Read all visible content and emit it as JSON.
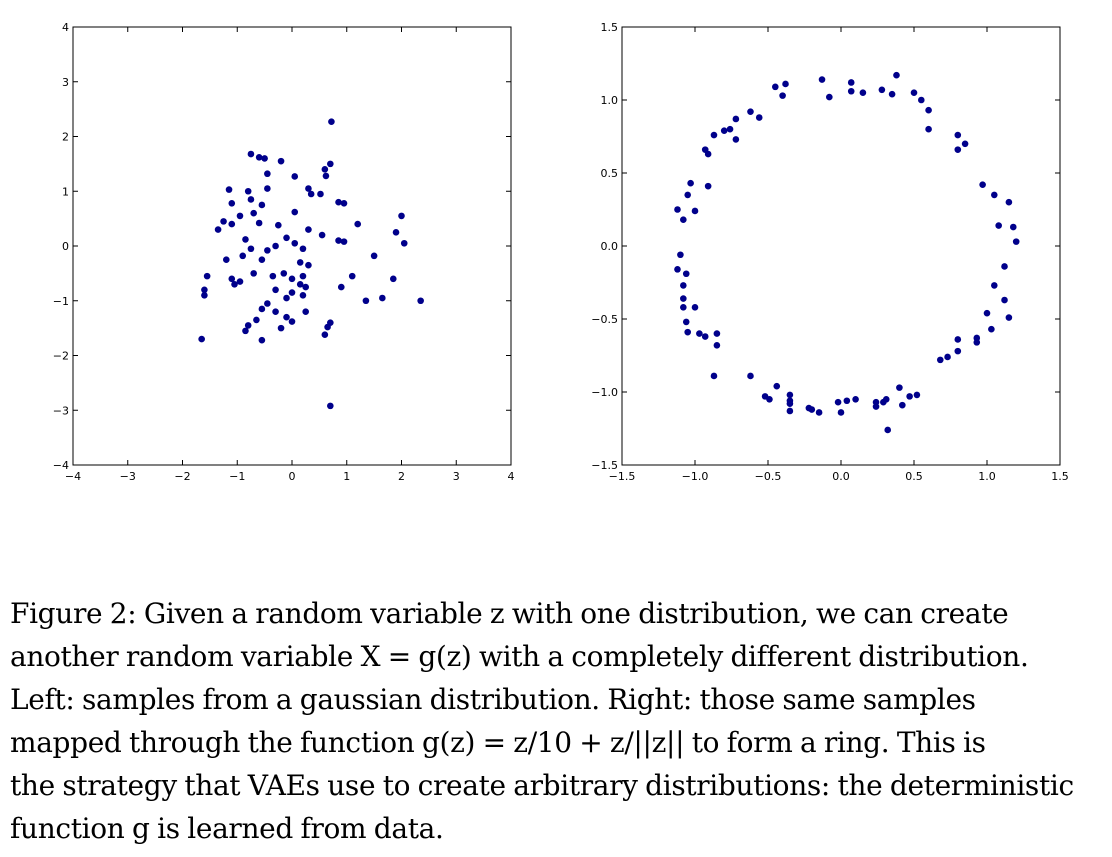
{
  "chart_data": [
    {
      "type": "scatter",
      "xlim": [
        -4,
        4
      ],
      "ylim": [
        -4,
        4
      ],
      "x_ticks": [
        "−4",
        "−3",
        "−2",
        "−1",
        "0",
        "1",
        "2",
        "3",
        "4"
      ],
      "y_ticks": [
        "−4",
        "−3",
        "−2",
        "−1",
        "0",
        "1",
        "2",
        "3",
        "4"
      ],
      "grid": false,
      "marker_color": "#00008b",
      "points": [
        [
          0.72,
          2.27
        ],
        [
          -0.75,
          1.68
        ],
        [
          -0.6,
          1.62
        ],
        [
          -0.5,
          1.6
        ],
        [
          -0.2,
          1.55
        ],
        [
          0.7,
          1.5
        ],
        [
          0.6,
          1.4
        ],
        [
          0.62,
          1.28
        ],
        [
          0.05,
          1.27
        ],
        [
          -0.45,
          1.32
        ],
        [
          0.3,
          1.05
        ],
        [
          0.52,
          0.95
        ],
        [
          -0.45,
          1.05
        ],
        [
          -0.8,
          1.0
        ],
        [
          -1.15,
          1.03
        ],
        [
          -1.1,
          0.78
        ],
        [
          -0.75,
          0.85
        ],
        [
          -0.55,
          0.75
        ],
        [
          0.35,
          0.95
        ],
        [
          0.85,
          0.8
        ],
        [
          0.95,
          0.78
        ],
        [
          0.05,
          0.62
        ],
        [
          -0.7,
          0.6
        ],
        [
          -0.95,
          0.55
        ],
        [
          -1.25,
          0.45
        ],
        [
          -1.1,
          0.4
        ],
        [
          -1.35,
          0.3
        ],
        [
          -0.6,
          0.42
        ],
        [
          -0.25,
          0.38
        ],
        [
          1.2,
          0.4
        ],
        [
          0.3,
          0.3
        ],
        [
          0.55,
          0.2
        ],
        [
          2.0,
          0.55
        ],
        [
          1.9,
          0.25
        ],
        [
          2.05,
          0.05
        ],
        [
          -0.1,
          0.15
        ],
        [
          0.05,
          0.05
        ],
        [
          -0.85,
          0.12
        ],
        [
          -0.3,
          0.0
        ],
        [
          -0.45,
          -0.08
        ],
        [
          -0.75,
          -0.05
        ],
        [
          0.2,
          -0.05
        ],
        [
          0.95,
          0.08
        ],
        [
          0.85,
          0.1
        ],
        [
          1.5,
          -0.18
        ],
        [
          -1.2,
          -0.25
        ],
        [
          -0.9,
          -0.18
        ],
        [
          -0.55,
          -0.25
        ],
        [
          0.15,
          -0.3
        ],
        [
          0.3,
          -0.35
        ],
        [
          -1.55,
          -0.55
        ],
        [
          -1.1,
          -0.6
        ],
        [
          -0.95,
          -0.65
        ],
        [
          -1.05,
          -0.7
        ],
        [
          -0.7,
          -0.5
        ],
        [
          -0.35,
          -0.55
        ],
        [
          -0.15,
          -0.5
        ],
        [
          0.0,
          -0.6
        ],
        [
          0.2,
          -0.55
        ],
        [
          0.15,
          -0.7
        ],
        [
          0.25,
          -0.75
        ],
        [
          1.1,
          -0.55
        ],
        [
          0.9,
          -0.75
        ],
        [
          1.85,
          -0.6
        ],
        [
          -1.6,
          -0.8
        ],
        [
          -1.6,
          -0.9
        ],
        [
          -0.3,
          -0.8
        ],
        [
          0.0,
          -0.85
        ],
        [
          0.2,
          -0.9
        ],
        [
          -0.1,
          -0.95
        ],
        [
          1.35,
          -1.0
        ],
        [
          1.65,
          -0.95
        ],
        [
          2.35,
          -1.0
        ],
        [
          -0.45,
          -1.05
        ],
        [
          -0.55,
          -1.15
        ],
        [
          -0.3,
          -1.2
        ],
        [
          0.25,
          -1.2
        ],
        [
          -0.1,
          -1.3
        ],
        [
          -0.65,
          -1.35
        ],
        [
          0.7,
          -1.4
        ],
        [
          0.0,
          -1.38
        ],
        [
          -0.8,
          -1.45
        ],
        [
          -0.2,
          -1.5
        ],
        [
          0.65,
          -1.48
        ],
        [
          -0.85,
          -1.55
        ],
        [
          0.6,
          -1.62
        ],
        [
          -0.55,
          -1.72
        ],
        [
          -1.65,
          -1.7
        ],
        [
          0.7,
          -2.92
        ]
      ]
    },
    {
      "type": "scatter",
      "xlim": [
        -1.5,
        1.5
      ],
      "ylim": [
        -1.5,
        1.5
      ],
      "x_ticks": [
        "−1.5",
        "−1.0",
        "−0.5",
        "0.0",
        "0.5",
        "1.0",
        "1.5"
      ],
      "y_ticks": [
        "−1.5",
        "−1.0",
        "−0.5",
        "0.0",
        "0.5",
        "1.0",
        "1.5"
      ],
      "grid": false,
      "marker_color": "#00008b",
      "points": [
        [
          0.38,
          1.17
        ],
        [
          -0.13,
          1.14
        ],
        [
          0.07,
          1.12
        ],
        [
          0.28,
          1.07
        ],
        [
          -0.38,
          1.11
        ],
        [
          -0.45,
          1.09
        ],
        [
          0.07,
          1.06
        ],
        [
          0.15,
          1.05
        ],
        [
          0.35,
          1.04
        ],
        [
          0.5,
          1.05
        ],
        [
          -0.4,
          1.03
        ],
        [
          -0.08,
          1.02
        ],
        [
          0.55,
          1.0
        ],
        [
          0.6,
          0.93
        ],
        [
          -0.62,
          0.92
        ],
        [
          -0.56,
          0.88
        ],
        [
          -0.72,
          0.87
        ],
        [
          -0.76,
          0.8
        ],
        [
          -0.8,
          0.79
        ],
        [
          -0.87,
          0.76
        ],
        [
          -0.72,
          0.73
        ],
        [
          0.6,
          0.8
        ],
        [
          0.8,
          0.76
        ],
        [
          0.85,
          0.7
        ],
        [
          0.8,
          0.66
        ],
        [
          -0.93,
          0.66
        ],
        [
          -0.91,
          0.63
        ],
        [
          -1.03,
          0.43
        ],
        [
          -0.91,
          0.41
        ],
        [
          0.97,
          0.42
        ],
        [
          1.05,
          0.35
        ],
        [
          -1.05,
          0.35
        ],
        [
          1.15,
          0.3
        ],
        [
          -1.12,
          0.25
        ],
        [
          -1.0,
          0.24
        ],
        [
          1.08,
          0.14
        ],
        [
          -1.08,
          0.18
        ],
        [
          1.18,
          0.13
        ],
        [
          1.2,
          0.03
        ],
        [
          1.12,
          -0.14
        ],
        [
          -1.1,
          -0.06
        ],
        [
          -1.12,
          -0.16
        ],
        [
          -1.06,
          -0.19
        ],
        [
          -1.08,
          -0.27
        ],
        [
          1.05,
          -0.27
        ],
        [
          -1.08,
          -0.36
        ],
        [
          1.12,
          -0.37
        ],
        [
          -1.08,
          -0.42
        ],
        [
          -1.0,
          -0.42
        ],
        [
          1.0,
          -0.46
        ],
        [
          1.15,
          -0.49
        ],
        [
          -1.06,
          -0.52
        ],
        [
          -1.05,
          -0.59
        ],
        [
          1.03,
          -0.57
        ],
        [
          -0.97,
          -0.6
        ],
        [
          -0.93,
          -0.62
        ],
        [
          -0.85,
          -0.6
        ],
        [
          0.93,
          -0.63
        ],
        [
          0.8,
          -0.64
        ],
        [
          0.93,
          -0.66
        ],
        [
          -0.85,
          -0.68
        ],
        [
          0.8,
          -0.72
        ],
        [
          0.73,
          -0.76
        ],
        [
          0.68,
          -0.78
        ],
        [
          -0.87,
          -0.89
        ],
        [
          -0.62,
          -0.89
        ],
        [
          0.4,
          -0.97
        ],
        [
          -0.44,
          -0.96
        ],
        [
          -0.35,
          -1.02
        ],
        [
          0.47,
          -1.03
        ],
        [
          -0.52,
          -1.03
        ],
        [
          -0.49,
          -1.05
        ],
        [
          0.52,
          -1.02
        ],
        [
          -0.35,
          -1.06
        ],
        [
          0.31,
          -1.05
        ],
        [
          0.1,
          -1.05
        ],
        [
          0.24,
          -1.07
        ],
        [
          0.04,
          -1.06
        ],
        [
          -0.02,
          -1.07
        ],
        [
          0.29,
          -1.07
        ],
        [
          0.42,
          -1.09
        ],
        [
          0.24,
          -1.1
        ],
        [
          -0.35,
          -1.08
        ],
        [
          -0.22,
          -1.11
        ],
        [
          -0.2,
          -1.12
        ],
        [
          -0.35,
          -1.13
        ],
        [
          0.0,
          -1.14
        ],
        [
          -0.15,
          -1.14
        ],
        [
          0.32,
          -1.26
        ]
      ]
    }
  ],
  "caption": {
    "lines": [
      "Figure 2: Given a random variable z with one distribution, we can create",
      "another random variable X = g(z) with a completely different distribution.",
      "Left:  samples from a gaussian distribution.  Right:  those same samples",
      "mapped through the function g(z) = z/10 + z/||z|| to form a ring.  This is",
      "the strategy that VAEs use to create arbitrary distributions: the deterministic",
      "function g is learned from data."
    ]
  }
}
